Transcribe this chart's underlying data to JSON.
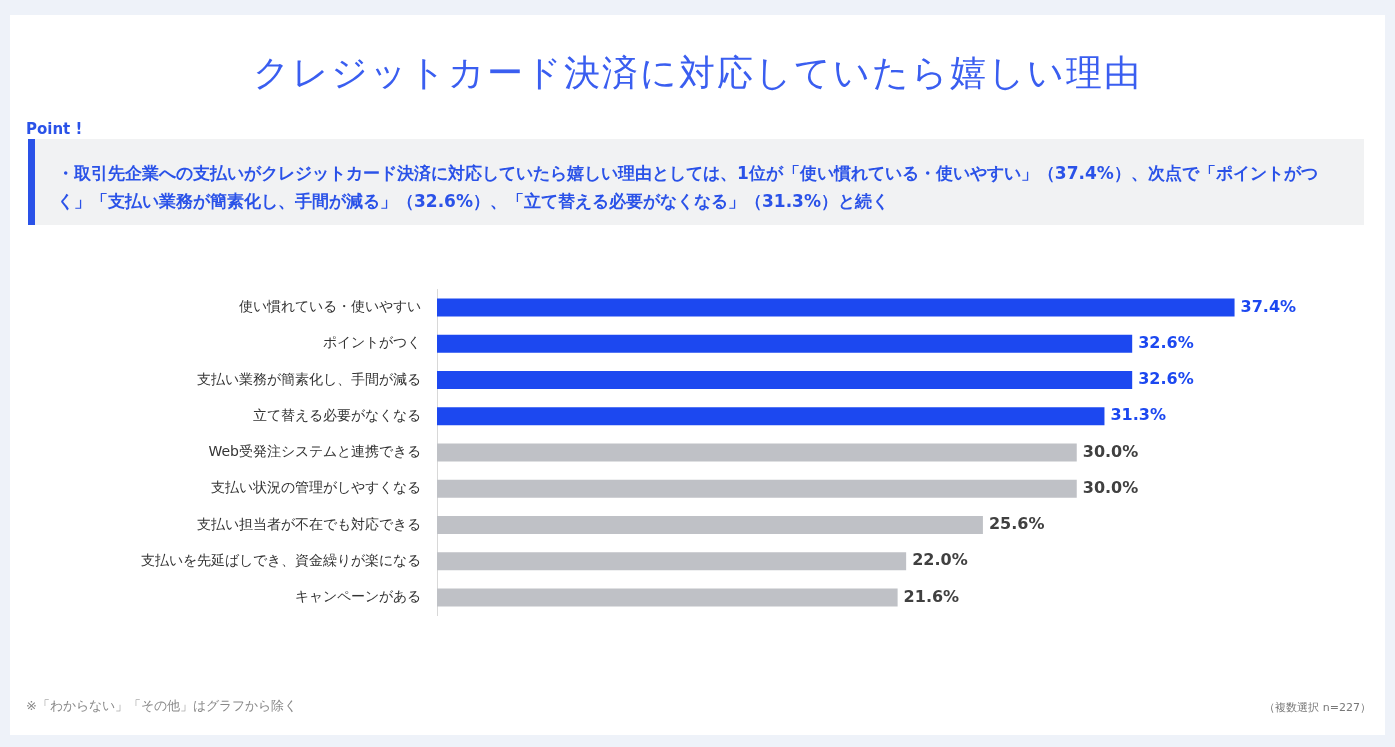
{
  "chart_data": {
    "type": "bar",
    "orientation": "horizontal",
    "title": "クレジットカード決済に対応していたら嬉しい理由",
    "annotations": [
      "Point !",
      "・取引先企業への支払いがクレジットカード決済に対応していたら嬉しい理由としては、1位が「使い慣れている・使いやすい」（37.4%）、次点で「ポイントがつく」「支払い業務が簡素化し、手間が減る」（32.6%）、「立て替える必要がなくなる」（31.3%）と続く",
      "※「わからない」「その他」はグラフから除く",
      "（複数選択 n=227）"
    ],
    "categories": [
      "使い慣れている・使いやすい",
      "ポイントがつく",
      "支払い業務が簡素化し、手間が減る",
      "立て替える必要がなくなる",
      "Web受発注システムと連携できる",
      "支払い状況の管理がしやすくなる",
      "支払い担当者が不在でも対応できる",
      "支払いを先延ばしでき、資金繰りが楽になる",
      "キャンペーンがある"
    ],
    "values": [
      37.4,
      32.6,
      32.6,
      31.3,
      30.0,
      30.0,
      25.6,
      22.0,
      21.6
    ],
    "value_labels": [
      "37.4%",
      "32.6%",
      "32.6%",
      "31.3%",
      "30.0%",
      "30.0%",
      "25.6%",
      "22.0%",
      "21.6%"
    ],
    "colors": [
      "#1c48f0",
      "#1c48f0",
      "#1c48f0",
      "#1c48f0",
      "#bfc1c6",
      "#bfc1c6",
      "#bfc1c6",
      "#bfc1c6",
      "#bfc1c6"
    ],
    "tick_labels": "y",
    "legend": false
  }
}
